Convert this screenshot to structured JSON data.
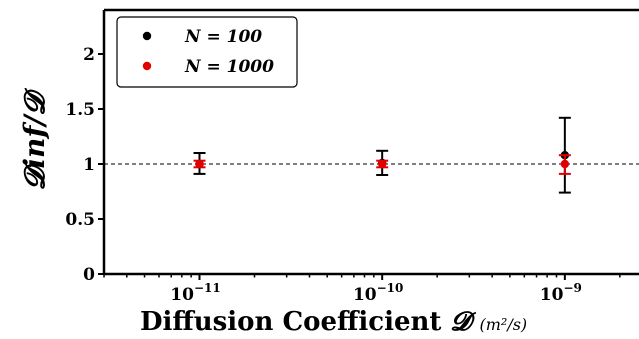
{
  "chart_data": {
    "type": "scatter",
    "xscale": "log",
    "xlim": [
      3e-12,
      3e-09
    ],
    "ylim": [
      0,
      2.4
    ],
    "grid": false,
    "legend_position": "top-left",
    "xlabel": {
      "main": "Diffusion Coefficient",
      "symbol": "𝓓",
      "units": "(m²/s)"
    },
    "ylabel": "𝓓inf/𝓓",
    "yticks": [
      "0",
      "0.5",
      "1",
      "1.5",
      "2"
    ],
    "xticks": [
      {
        "base": "10",
        "exp": "−11"
      },
      {
        "base": "10",
        "exp": "−10"
      },
      {
        "base": "10",
        "exp": "−9"
      }
    ],
    "reference_line": {
      "y": 1,
      "style": "dashed",
      "color": "#000000"
    },
    "series": [
      {
        "name": "N = 100",
        "color": "#000000",
        "points": [
          {
            "x": 1e-11,
            "y": 1.0,
            "ylow": 0.91,
            "yhigh": 1.1
          },
          {
            "x": 1e-10,
            "y": 1.01,
            "ylow": 0.9,
            "yhigh": 1.12
          },
          {
            "x": 1e-09,
            "y": 1.08,
            "ylow": 0.74,
            "yhigh": 1.42
          }
        ]
      },
      {
        "name": "N = 1000",
        "color": "#e00000",
        "points": [
          {
            "x": 1e-11,
            "y": 1.0,
            "ylow": 0.97,
            "yhigh": 1.03
          },
          {
            "x": 1e-10,
            "y": 1.0,
            "ylow": 0.97,
            "yhigh": 1.03
          },
          {
            "x": 1e-09,
            "y": 1.0,
            "ylow": 0.91,
            "yhigh": 1.08
          }
        ]
      }
    ],
    "legend": [
      {
        "label": "N = 100",
        "color": "#000000"
      },
      {
        "label": "N = 1000",
        "color": "#e00000"
      }
    ]
  }
}
